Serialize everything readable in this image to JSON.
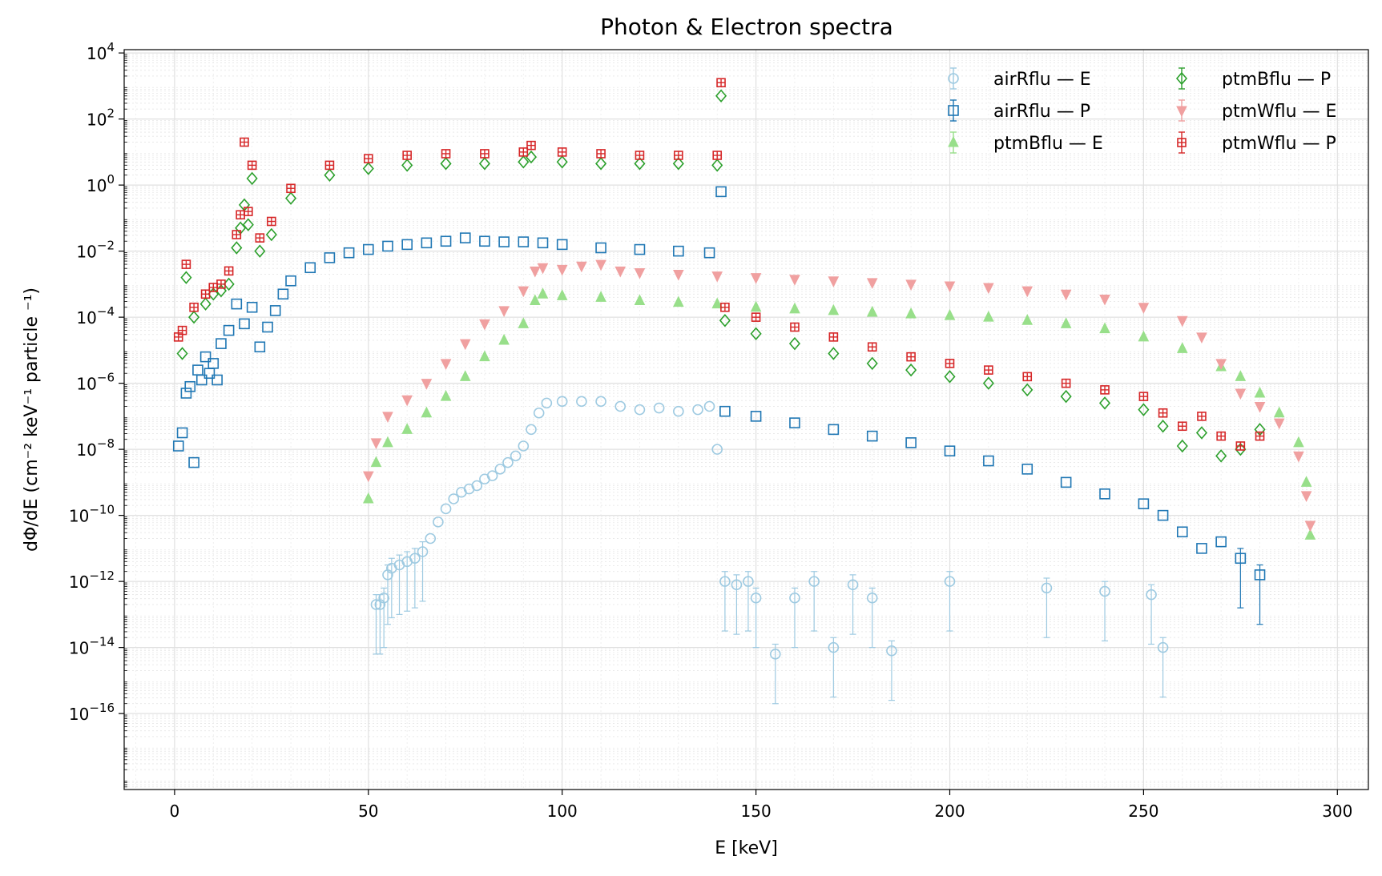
{
  "chart_data": {
    "type": "scatter",
    "title": "Photon & Electron spectra",
    "xlabel": "E [keV]",
    "ylabel": "dΦ/dE  (cm⁻² keV⁻¹ particle ⁻¹)",
    "xlim": [
      -13,
      308
    ],
    "ylim_log10": [
      -18.3,
      4.1
    ],
    "yscale": "log",
    "grid": true,
    "legend_position": "top-right",
    "legend_columns": 2,
    "x_ticks": [
      0,
      50,
      100,
      150,
      200,
      250,
      300
    ],
    "y_ticks_exponents": [
      -16,
      -14,
      -12,
      -10,
      -8,
      -6,
      -4,
      -2,
      0,
      2,
      4
    ],
    "series": [
      {
        "name": "airRflu — E",
        "color": "#9ecae1",
        "marker": "circle",
        "points": [
          [
            52,
            -12.7
          ],
          [
            53,
            -12.7
          ],
          [
            54,
            -12.5
          ],
          [
            55,
            -11.8
          ],
          [
            56,
            -11.6
          ],
          [
            58,
            -11.5
          ],
          [
            60,
            -11.4
          ],
          [
            62,
            -11.3
          ],
          [
            64,
            -11.1
          ],
          [
            66,
            -10.7
          ],
          [
            68,
            -10.2
          ],
          [
            70,
            -9.8
          ],
          [
            72,
            -9.5
          ],
          [
            74,
            -9.3
          ],
          [
            76,
            -9.2
          ],
          [
            78,
            -9.1
          ],
          [
            80,
            -8.9
          ],
          [
            82,
            -8.8
          ],
          [
            84,
            -8.6
          ],
          [
            86,
            -8.4
          ],
          [
            88,
            -8.2
          ],
          [
            90,
            -7.9
          ],
          [
            92,
            -7.4
          ],
          [
            94,
            -6.9
          ],
          [
            96,
            -6.6
          ],
          [
            100,
            -6.55
          ],
          [
            105,
            -6.55
          ],
          [
            110,
            -6.55
          ],
          [
            115,
            -6.7
          ],
          [
            120,
            -6.8
          ],
          [
            125,
            -6.75
          ],
          [
            130,
            -6.85
          ],
          [
            135,
            -6.8
          ],
          [
            138,
            -6.7
          ],
          [
            140,
            -8.0
          ],
          [
            142,
            -12.0
          ],
          [
            145,
            -12.1
          ],
          [
            148,
            -12.0
          ],
          [
            150,
            -12.5
          ],
          [
            155,
            -14.2
          ],
          [
            160,
            -12.5
          ],
          [
            165,
            -12.0
          ],
          [
            170,
            -14.0
          ],
          [
            175,
            -12.1
          ],
          [
            180,
            -12.5
          ],
          [
            185,
            -14.1
          ],
          [
            200,
            -12.0
          ],
          [
            225,
            -12.2
          ],
          [
            240,
            -12.3
          ],
          [
            252,
            -12.4
          ],
          [
            255,
            -14.0
          ]
        ]
      },
      {
        "name": "airRflu — P",
        "color": "#1f77b4",
        "marker": "square",
        "points": [
          [
            1,
            -7.9
          ],
          [
            2,
            -7.5
          ],
          [
            3,
            -6.3
          ],
          [
            4,
            -6.1
          ],
          [
            5,
            -8.4
          ],
          [
            6,
            -5.6
          ],
          [
            7,
            -5.9
          ],
          [
            8,
            -5.2
          ],
          [
            9,
            -5.7
          ],
          [
            10,
            -5.4
          ],
          [
            11,
            -5.9
          ],
          [
            12,
            -4.8
          ],
          [
            14,
            -4.4
          ],
          [
            16,
            -3.6
          ],
          [
            18,
            -4.2
          ],
          [
            20,
            -3.7
          ],
          [
            22,
            -4.9
          ],
          [
            24,
            -4.3
          ],
          [
            26,
            -3.8
          ],
          [
            28,
            -3.3
          ],
          [
            30,
            -2.9
          ],
          [
            35,
            -2.5
          ],
          [
            40,
            -2.2
          ],
          [
            45,
            -2.05
          ],
          [
            50,
            -1.95
          ],
          [
            55,
            -1.85
          ],
          [
            60,
            -1.8
          ],
          [
            65,
            -1.75
          ],
          [
            70,
            -1.7
          ],
          [
            75,
            -1.6
          ],
          [
            80,
            -1.7
          ],
          [
            85,
            -1.72
          ],
          [
            90,
            -1.72
          ],
          [
            95,
            -1.75
          ],
          [
            100,
            -1.8
          ],
          [
            110,
            -1.9
          ],
          [
            120,
            -1.95
          ],
          [
            130,
            -2.0
          ],
          [
            138,
            -2.05
          ],
          [
            141,
            -0.2
          ],
          [
            142,
            -6.85
          ],
          [
            150,
            -7.0
          ],
          [
            160,
            -7.2
          ],
          [
            170,
            -7.4
          ],
          [
            180,
            -7.6
          ],
          [
            190,
            -7.8
          ],
          [
            200,
            -8.05
          ],
          [
            210,
            -8.35
          ],
          [
            220,
            -8.6
          ],
          [
            230,
            -9.0
          ],
          [
            240,
            -9.35
          ],
          [
            250,
            -9.65
          ],
          [
            255,
            -10.0
          ],
          [
            260,
            -10.5
          ],
          [
            265,
            -11.0
          ],
          [
            270,
            -10.8
          ],
          [
            275,
            -11.3
          ],
          [
            280,
            -11.8
          ]
        ]
      },
      {
        "name": "ptmBflu — E",
        "color": "#98df8a",
        "marker": "triangle-up",
        "points": [
          [
            50,
            -9.5
          ],
          [
            52,
            -8.4
          ],
          [
            55,
            -7.8
          ],
          [
            60,
            -7.4
          ],
          [
            65,
            -6.9
          ],
          [
            70,
            -6.4
          ],
          [
            75,
            -5.8
          ],
          [
            80,
            -5.2
          ],
          [
            85,
            -4.7
          ],
          [
            90,
            -4.2
          ],
          [
            93,
            -3.5
          ],
          [
            95,
            -3.3
          ],
          [
            100,
            -3.35
          ],
          [
            110,
            -3.4
          ],
          [
            120,
            -3.5
          ],
          [
            130,
            -3.55
          ],
          [
            140,
            -3.6
          ],
          [
            150,
            -3.7
          ],
          [
            160,
            -3.75
          ],
          [
            170,
            -3.8
          ],
          [
            180,
            -3.85
          ],
          [
            190,
            -3.9
          ],
          [
            200,
            -3.95
          ],
          [
            210,
            -4.0
          ],
          [
            220,
            -4.1
          ],
          [
            230,
            -4.2
          ],
          [
            240,
            -4.35
          ],
          [
            250,
            -4.6
          ],
          [
            260,
            -4.95
          ],
          [
            270,
            -5.5
          ],
          [
            275,
            -5.8
          ],
          [
            280,
            -6.3
          ],
          [
            285,
            -6.9
          ],
          [
            290,
            -7.8
          ],
          [
            292,
            -9.0
          ],
          [
            293,
            -10.6
          ]
        ]
      },
      {
        "name": "ptmBflu — P",
        "color": "#2ca02c",
        "marker": "diamond",
        "points": [
          [
            2,
            -5.1
          ],
          [
            3,
            -2.8
          ],
          [
            5,
            -4.0
          ],
          [
            8,
            -3.6
          ],
          [
            10,
            -3.3
          ],
          [
            12,
            -3.2
          ],
          [
            14,
            -3.0
          ],
          [
            16,
            -1.9
          ],
          [
            17,
            -1.3
          ],
          [
            18,
            -0.6
          ],
          [
            19,
            -1.2
          ],
          [
            20,
            0.2
          ],
          [
            22,
            -2.0
          ],
          [
            25,
            -1.5
          ],
          [
            30,
            -0.4
          ],
          [
            40,
            0.3
          ],
          [
            50,
            0.5
          ],
          [
            60,
            0.6
          ],
          [
            70,
            0.65
          ],
          [
            80,
            0.65
          ],
          [
            90,
            0.7
          ],
          [
            92,
            0.85
          ],
          [
            100,
            0.7
          ],
          [
            110,
            0.65
          ],
          [
            120,
            0.65
          ],
          [
            130,
            0.65
          ],
          [
            140,
            0.6
          ],
          [
            141,
            2.7
          ],
          [
            142,
            -4.1
          ],
          [
            150,
            -4.5
          ],
          [
            160,
            -4.8
          ],
          [
            170,
            -5.1
          ],
          [
            180,
            -5.4
          ],
          [
            190,
            -5.6
          ],
          [
            200,
            -5.8
          ],
          [
            210,
            -6.0
          ],
          [
            220,
            -6.2
          ],
          [
            230,
            -6.4
          ],
          [
            240,
            -6.6
          ],
          [
            250,
            -6.8
          ],
          [
            255,
            -7.3
          ],
          [
            260,
            -7.9
          ],
          [
            265,
            -7.5
          ],
          [
            270,
            -8.2
          ],
          [
            275,
            -8.0
          ],
          [
            280,
            -7.4
          ]
        ]
      },
      {
        "name": "ptmWflu — E",
        "color": "#f0a0a0",
        "marker": "triangle-down",
        "points": [
          [
            50,
            -8.8
          ],
          [
            52,
            -7.8
          ],
          [
            55,
            -7.0
          ],
          [
            60,
            -6.5
          ],
          [
            65,
            -6.0
          ],
          [
            70,
            -5.4
          ],
          [
            75,
            -4.8
          ],
          [
            80,
            -4.2
          ],
          [
            85,
            -3.8
          ],
          [
            90,
            -3.2
          ],
          [
            93,
            -2.6
          ],
          [
            95,
            -2.5
          ],
          [
            100,
            -2.55
          ],
          [
            105,
            -2.45
          ],
          [
            110,
            -2.4
          ],
          [
            115,
            -2.6
          ],
          [
            120,
            -2.65
          ],
          [
            130,
            -2.7
          ],
          [
            140,
            -2.75
          ],
          [
            150,
            -2.8
          ],
          [
            160,
            -2.85
          ],
          [
            170,
            -2.9
          ],
          [
            180,
            -2.95
          ],
          [
            190,
            -3.0
          ],
          [
            200,
            -3.05
          ],
          [
            210,
            -3.1
          ],
          [
            220,
            -3.2
          ],
          [
            230,
            -3.3
          ],
          [
            240,
            -3.45
          ],
          [
            250,
            -3.7
          ],
          [
            260,
            -4.1
          ],
          [
            265,
            -4.6
          ],
          [
            270,
            -5.4
          ],
          [
            275,
            -6.3
          ],
          [
            280,
            -6.7
          ],
          [
            285,
            -7.2
          ],
          [
            290,
            -8.2
          ],
          [
            292,
            -9.4
          ],
          [
            293,
            -10.3
          ]
        ]
      },
      {
        "name": "ptmWflu — P",
        "color": "#d62728",
        "marker": "plus-square",
        "points": [
          [
            1,
            -4.6
          ],
          [
            2,
            -4.4
          ],
          [
            3,
            -2.4
          ],
          [
            5,
            -3.7
          ],
          [
            8,
            -3.3
          ],
          [
            10,
            -3.1
          ],
          [
            12,
            -3.0
          ],
          [
            14,
            -2.6
          ],
          [
            16,
            -1.5
          ],
          [
            17,
            -0.9
          ],
          [
            18,
            1.3
          ],
          [
            19,
            -0.8
          ],
          [
            20,
            0.6
          ],
          [
            22,
            -1.6
          ],
          [
            25,
            -1.1
          ],
          [
            30,
            -0.1
          ],
          [
            40,
            0.6
          ],
          [
            50,
            0.8
          ],
          [
            60,
            0.9
          ],
          [
            70,
            0.95
          ],
          [
            80,
            0.95
          ],
          [
            90,
            1.0
          ],
          [
            92,
            1.2
          ],
          [
            100,
            1.0
          ],
          [
            110,
            0.95
          ],
          [
            120,
            0.9
          ],
          [
            130,
            0.9
          ],
          [
            140,
            0.9
          ],
          [
            141,
            3.1
          ],
          [
            142,
            -3.7
          ],
          [
            150,
            -4.0
          ],
          [
            160,
            -4.3
          ],
          [
            170,
            -4.6
          ],
          [
            180,
            -4.9
          ],
          [
            190,
            -5.2
          ],
          [
            200,
            -5.4
          ],
          [
            210,
            -5.6
          ],
          [
            220,
            -5.8
          ],
          [
            230,
            -6.0
          ],
          [
            240,
            -6.2
          ],
          [
            250,
            -6.4
          ],
          [
            255,
            -6.9
          ],
          [
            260,
            -7.3
          ],
          [
            265,
            -7.0
          ],
          [
            270,
            -7.6
          ],
          [
            275,
            -7.9
          ],
          [
            280,
            -7.6
          ]
        ]
      }
    ]
  }
}
